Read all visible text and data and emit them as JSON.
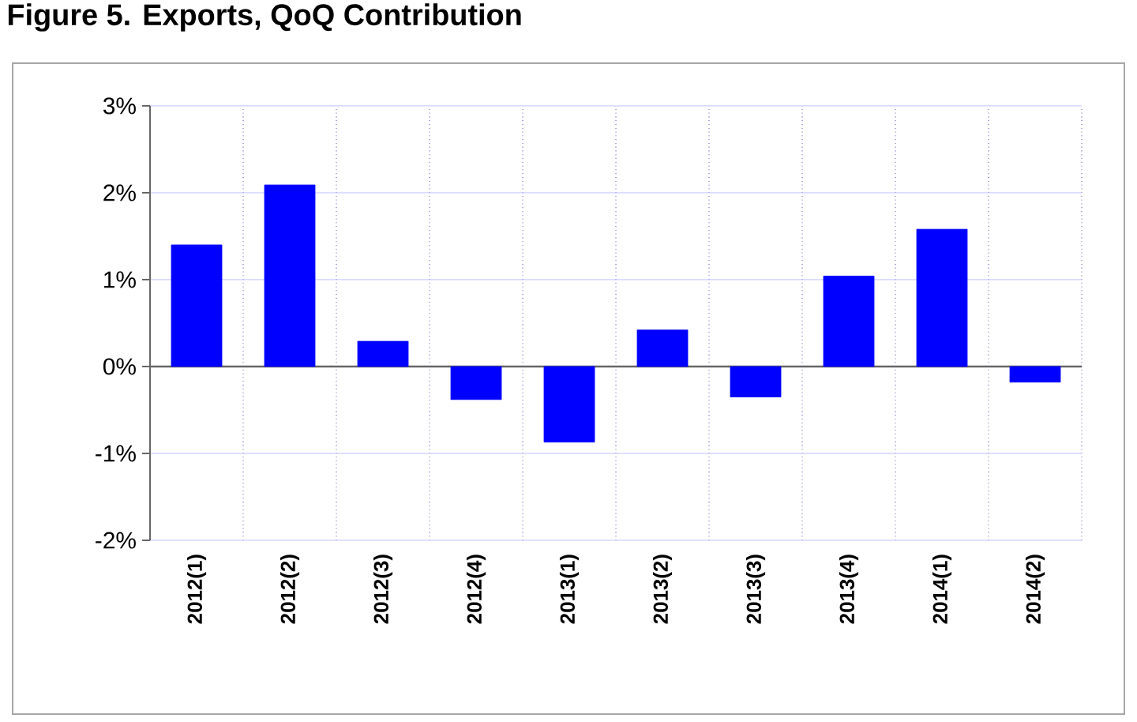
{
  "chart_data": {
    "type": "bar",
    "title": "Figure 5. Exports, QoQ Contribution",
    "categories": [
      "2012(1)",
      "2012(2)",
      "2012(3)",
      "2012(4)",
      "2013(1)",
      "2013(2)",
      "2013(3)",
      "2013(4)",
      "2014(1)",
      "2014(2)"
    ],
    "values": [
      1.4,
      2.09,
      0.29,
      -0.38,
      -0.87,
      0.42,
      -0.35,
      1.04,
      1.58,
      -0.18
    ],
    "color": "#0000ff",
    "ylim": [
      -2,
      3
    ],
    "yticks": [
      {
        "value": -2,
        "label": "-2%"
      },
      {
        "value": -1,
        "label": "-1%"
      },
      {
        "value": 0,
        "label": "0%"
      },
      {
        "value": 1,
        "label": "1%"
      },
      {
        "value": 2,
        "label": "2%"
      },
      {
        "value": 3,
        "label": "3%"
      }
    ],
    "grid": true
  }
}
